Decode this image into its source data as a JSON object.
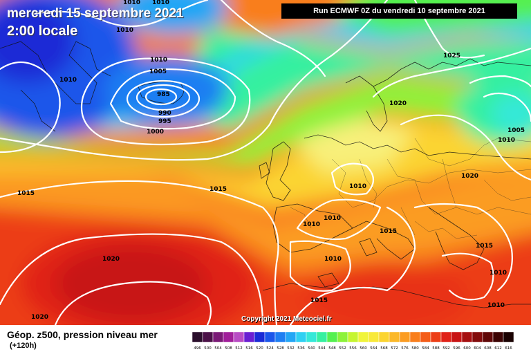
{
  "header": {
    "date": "mercredi 15 septembre 2021",
    "time": "2:00 locale",
    "run": "Run ECMWF 0Z du vendredi 10 septembre 2021"
  },
  "copyright": "Copyright 2021 Meteociel.fr",
  "footer": {
    "label": "Géop. z500, pression niveau mer",
    "forecast": "(+120h)"
  },
  "legend": {
    "values": [
      "496",
      "500",
      "504",
      "508",
      "512",
      "516",
      "520",
      "524",
      "528",
      "532",
      "536",
      "540",
      "544",
      "548",
      "552",
      "556",
      "560",
      "564",
      "568",
      "572",
      "576",
      "580",
      "584",
      "588",
      "592",
      "596",
      "600",
      "604",
      "608",
      "612",
      "616"
    ],
    "colors": [
      "#2b0f2c",
      "#4b1148",
      "#7a1a76",
      "#a01e9a",
      "#b84bc4",
      "#6a1fd2",
      "#1a2bd6",
      "#1b56ea",
      "#1e7ef2",
      "#23a6f5",
      "#2fd0f2",
      "#35e8d8",
      "#36f0a0",
      "#54f050",
      "#8cf23a",
      "#c5f530",
      "#f0f43a",
      "#f8e93a",
      "#fbd431",
      "#fbb829",
      "#fb9c22",
      "#f97e1c",
      "#f45c18",
      "#ec3e16",
      "#e02218",
      "#c81414",
      "#a50f10",
      "#820c0c",
      "#600808",
      "#3c0404",
      "#1a0202"
    ]
  },
  "isobars": [
    {
      "id": "985",
      "label": "985"
    },
    {
      "id": "990",
      "label": "990"
    },
    {
      "id": "995",
      "label": "995"
    },
    {
      "id": "1000",
      "label": "1000"
    },
    {
      "id": "1005a",
      "label": "1005"
    },
    {
      "id": "1010a",
      "label": "1010"
    },
    {
      "id": "1010b",
      "label": "1010"
    },
    {
      "id": "1010c",
      "label": "1010"
    },
    {
      "id": "1010d",
      "label": "1010"
    },
    {
      "id": "1010e",
      "label": "1010"
    },
    {
      "id": "1010f",
      "label": "1010"
    },
    {
      "id": "1010g",
      "label": "1010"
    },
    {
      "id": "1010h",
      "label": "1010"
    },
    {
      "id": "1010i",
      "label": "1010"
    },
    {
      "id": "1010j",
      "label": "1010"
    },
    {
      "id": "1010k",
      "label": "1010"
    },
    {
      "id": "1010l",
      "label": "1010"
    },
    {
      "id": "1015a",
      "label": "1015"
    },
    {
      "id": "1015b",
      "label": "1015"
    },
    {
      "id": "1015c",
      "label": "1015"
    },
    {
      "id": "1015d",
      "label": "1015"
    },
    {
      "id": "1015e",
      "label": "1015"
    },
    {
      "id": "1020a",
      "label": "1020"
    },
    {
      "id": "1020b",
      "label": "1020"
    },
    {
      "id": "1020c",
      "label": "1020"
    },
    {
      "id": "1020d",
      "label": "1020"
    },
    {
      "id": "1025",
      "label": "1025"
    },
    {
      "id": "1005b",
      "label": "1005"
    }
  ]
}
